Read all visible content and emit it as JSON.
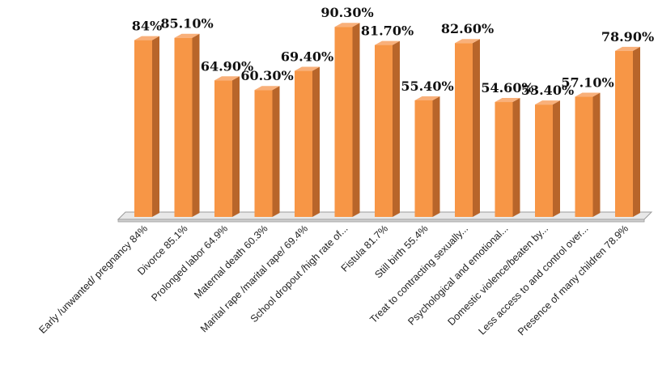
{
  "chart_data": {
    "type": "bar",
    "title": "",
    "xlabel": "",
    "ylabel": "",
    "ylim": [
      0,
      100
    ],
    "grid": false,
    "legend": "none",
    "bar_color": "#F79646",
    "bar_side_color": "#B8652A",
    "bar_top_color": "#F9B07A",
    "floor_color": "#E8E8E8",
    "categories": [
      "Early /unwanted/ pregnancy 84%",
      "Divorce 85.1%",
      "Prolonged labor 64.9%",
      "Maternal death 60.3%",
      "Marital rape /marital rape/ 69.4%",
      "School dropout /high rate of...",
      "Fistula 81.7%",
      "Still birth 55.4%",
      "Treat to contracting sexually...",
      "Psychological and emotional...",
      "Domestic violence/beaten by...",
      "Less access to and control over...",
      "Presence of many children 78.9%"
    ],
    "values": [
      84,
      85.1,
      64.9,
      60.3,
      69.4,
      90.3,
      81.7,
      55.4,
      82.6,
      54.6,
      53.4,
      57.1,
      78.9
    ],
    "data_labels": [
      "84%",
      "85.10%",
      "64.90%",
      "60.30%",
      "69.40%",
      "90.30%",
      "81.70%",
      "55.40%",
      "82.60%",
      "54.60%",
      "53.40%",
      "57.10%",
      "78.90%"
    ]
  }
}
